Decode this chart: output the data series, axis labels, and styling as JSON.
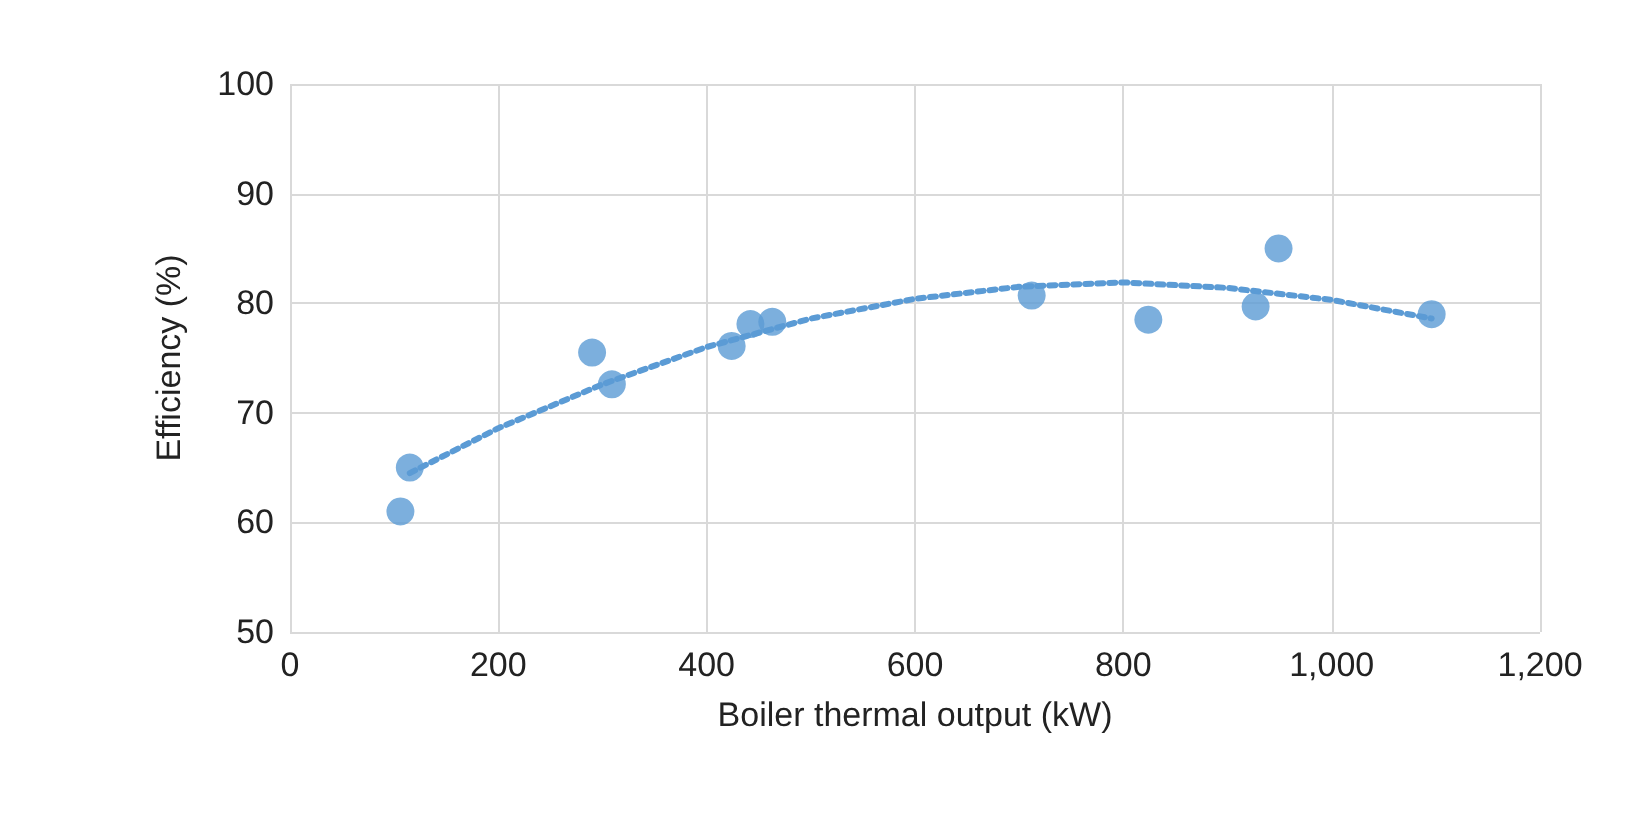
{
  "chart_data": {
    "type": "scatter",
    "xlabel": "Boiler thermal output (kW)",
    "ylabel": "Efficiency (%)",
    "xlim": [
      0,
      1200
    ],
    "xticks": [
      0,
      200,
      400,
      600,
      800,
      {
        "value": 1000,
        "label": "1,000"
      },
      {
        "value": 1200,
        "label": "1,200"
      }
    ],
    "ylim": [
      50,
      100
    ],
    "yticks": [
      50,
      60,
      70,
      80,
      90,
      100
    ],
    "grid": true,
    "series": [
      {
        "color": "#5b9bd5",
        "marker": "circle",
        "x": [
          106,
          115,
          290,
          309,
          424,
          442,
          463,
          712,
          824,
          927,
          949,
          1096
        ],
        "values": [
          61,
          65,
          75.5,
          72.6,
          76.1,
          78.1,
          78.3,
          80.7,
          78.5,
          79.7,
          85.0,
          79.0
        ]
      },
      {
        "type": "line",
        "color": "#5b9bd5",
        "marker": "none",
        "line_style": "dotted",
        "x": [
          115,
          200,
          300,
          400,
          500,
          600,
          700,
          800,
          900,
          1000,
          1096
        ],
        "values": [
          64.5,
          68.6,
          72.6,
          76,
          78.6,
          80.4,
          81.5,
          81.9,
          81.4,
          80.3,
          78.6
        ]
      }
    ]
  }
}
